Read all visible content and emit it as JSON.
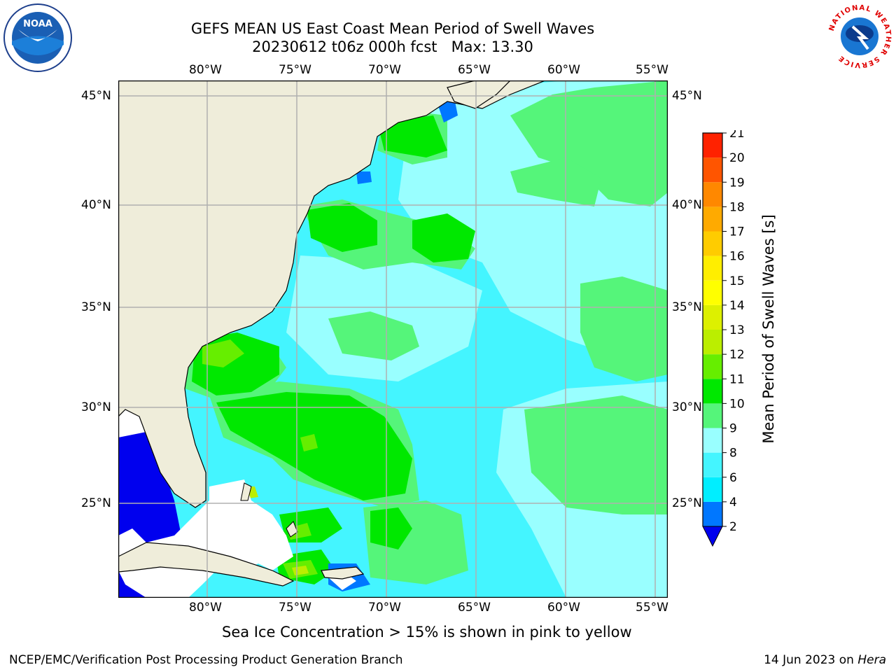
{
  "title": {
    "line1": "GEFS MEAN US East Coast Mean Period of Swell Waves",
    "line2": "20230612 t06z 000h fcst   Max: 13.30"
  },
  "map": {
    "lon_ticks": [
      "80°W",
      "75°W",
      "70°W",
      "65°W",
      "60°W",
      "55°W"
    ],
    "lat_ticks": [
      "45°N",
      "40°N",
      "35°N",
      "30°N",
      "25°N"
    ],
    "colors": {
      "land": "#efedda",
      "missing": "#ffffff",
      "gridline": "#b0b0b0",
      "coast": "#000000"
    },
    "field_colors": {
      "lt_2": "#0000ee",
      "2_4": "#0077ff",
      "4_6": "#00eeff",
      "6_8": "#44f5ff",
      "8_9": "#99ffff",
      "9_10": "#55f57a",
      "10_11": "#00e800",
      "11_12": "#66ee00",
      "12_13": "#bbee00"
    }
  },
  "colorbar": {
    "label": "Mean Period of Swell Waves [s]",
    "ticks": [
      "2",
      "4",
      "6",
      "8",
      "9",
      "10",
      "11",
      "12",
      "13",
      "14",
      "15",
      "16",
      "17",
      "18",
      "19",
      "20",
      "21"
    ],
    "colors": [
      "#0077ff",
      "#00eeff",
      "#44f5ff",
      "#99ffff",
      "#55f57a",
      "#00e800",
      "#66ee00",
      "#bbee00",
      "#ddf000",
      "#ffff00",
      "#ffee00",
      "#ffcc00",
      "#ffaa00",
      "#ff8800",
      "#ff5500",
      "#ff2200"
    ],
    "under_color": "#0000ee"
  },
  "note": "Sea Ice Concentration > 15% is shown in pink to yellow",
  "footer": {
    "left": "NCEP/EMC/Verification Post Processing Product Generation Branch",
    "right_date": "14 Jun 2023 on ",
    "right_machine": "Hera"
  },
  "logos": {
    "noaa": "NOAA",
    "nws_ring": "NATIONAL WEATHER SERVICE"
  }
}
